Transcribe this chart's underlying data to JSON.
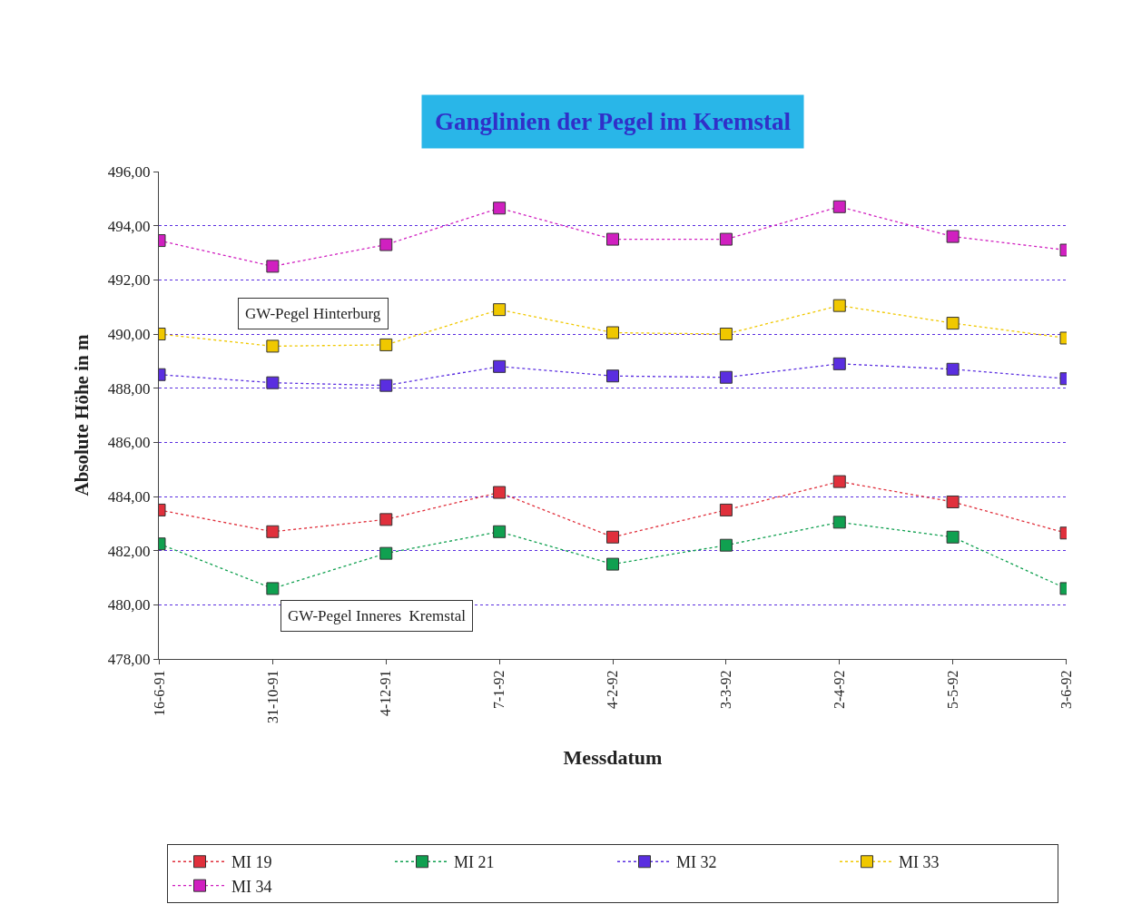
{
  "chart_data": {
    "type": "line",
    "title": "Ganglinien der Pegel im Kremstal",
    "xlabel": "Messdatum",
    "ylabel": "Absolute Höhe in m",
    "categories": [
      "16-6-91",
      "31-10-91",
      "4-12-91",
      "7-1-92",
      "4-2-92",
      "3-3-92",
      "2-4-92",
      "5-5-92",
      "3-6-92"
    ],
    "series": [
      {
        "name": "MI 19",
        "color": "#e0303c",
        "values": [
          483.5,
          482.7,
          483.15,
          484.15,
          482.5,
          483.5,
          484.55,
          483.8,
          482.65
        ]
      },
      {
        "name": "MI 21",
        "color": "#10a050",
        "values": [
          482.25,
          480.6,
          481.9,
          482.7,
          481.5,
          482.2,
          483.05,
          482.5,
          480.6
        ]
      },
      {
        "name": "MI 32",
        "color": "#5a2ee0",
        "values": [
          488.5,
          488.2,
          488.1,
          488.8,
          488.45,
          488.4,
          488.9,
          488.7,
          488.35
        ]
      },
      {
        "name": "MI 33",
        "color": "#f0c800",
        "values": [
          490.0,
          489.55,
          489.6,
          490.9,
          490.05,
          490.0,
          491.05,
          490.4,
          489.85
        ]
      },
      {
        "name": "MI 34",
        "color": "#d020c0",
        "values": [
          493.45,
          492.5,
          493.3,
          494.65,
          493.5,
          493.5,
          494.7,
          493.6,
          493.1
        ]
      }
    ],
    "ylim": [
      478,
      496
    ],
    "yticks": [
      {
        "value": 478,
        "label": "478,00"
      },
      {
        "value": 480,
        "label": "480,00"
      },
      {
        "value": 482,
        "label": "482,00"
      },
      {
        "value": 484,
        "label": "484,00"
      },
      {
        "value": 486,
        "label": "486,00"
      },
      {
        "value": 488,
        "label": "488,00"
      },
      {
        "value": 490,
        "label": "490,00"
      },
      {
        "value": 492,
        "label": "492,00"
      },
      {
        "value": 494,
        "label": "494,00"
      },
      {
        "value": 496,
        "label": "496,00"
      }
    ],
    "annotations": [
      "GW-Pegel Hinterburg",
      "GW-Pegel Inneres  Kremstal"
    ],
    "grid": "y",
    "legend": "bottom",
    "marker": "square",
    "line_style": "dotted"
  }
}
